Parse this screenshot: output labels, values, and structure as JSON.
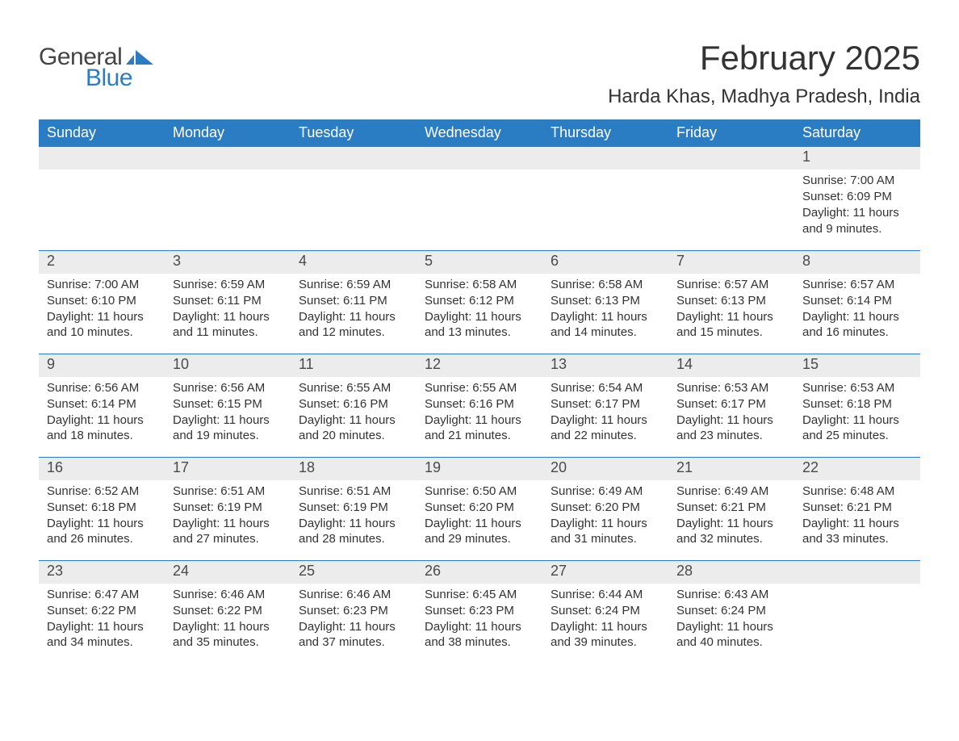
{
  "brand": {
    "general": "General",
    "blue": "Blue"
  },
  "title": {
    "month": "February 2025",
    "location": "Harda Khas, Madhya Pradesh, India"
  },
  "colors": {
    "header_bg": "#2a7dc2",
    "header_text": "#ffffff",
    "daynum_band_bg": "#ececec",
    "week_divider": "#2a7dc2",
    "body_text": "#333333",
    "logo_gray": "#444444",
    "logo_blue": "#2a7dc2",
    "page_bg": "#ffffff"
  },
  "layout": {
    "columns": 7,
    "rows": 5,
    "title_fontsize": 42,
    "location_fontsize": 24,
    "weekday_fontsize": 18,
    "daynum_fontsize": 18,
    "cell_fontsize": 15,
    "type": "calendar-table"
  },
  "weekdays": [
    "Sunday",
    "Monday",
    "Tuesday",
    "Wednesday",
    "Thursday",
    "Friday",
    "Saturday"
  ],
  "weeks": [
    [
      {
        "day": "",
        "sunrise": "",
        "sunset": "",
        "daylight": ""
      },
      {
        "day": "",
        "sunrise": "",
        "sunset": "",
        "daylight": ""
      },
      {
        "day": "",
        "sunrise": "",
        "sunset": "",
        "daylight": ""
      },
      {
        "day": "",
        "sunrise": "",
        "sunset": "",
        "daylight": ""
      },
      {
        "day": "",
        "sunrise": "",
        "sunset": "",
        "daylight": ""
      },
      {
        "day": "",
        "sunrise": "",
        "sunset": "",
        "daylight": ""
      },
      {
        "day": "1",
        "sunrise": "Sunrise: 7:00 AM",
        "sunset": "Sunset: 6:09 PM",
        "daylight": "Daylight: 11 hours and 9 minutes."
      }
    ],
    [
      {
        "day": "2",
        "sunrise": "Sunrise: 7:00 AM",
        "sunset": "Sunset: 6:10 PM",
        "daylight": "Daylight: 11 hours and 10 minutes."
      },
      {
        "day": "3",
        "sunrise": "Sunrise: 6:59 AM",
        "sunset": "Sunset: 6:11 PM",
        "daylight": "Daylight: 11 hours and 11 minutes."
      },
      {
        "day": "4",
        "sunrise": "Sunrise: 6:59 AM",
        "sunset": "Sunset: 6:11 PM",
        "daylight": "Daylight: 11 hours and 12 minutes."
      },
      {
        "day": "5",
        "sunrise": "Sunrise: 6:58 AM",
        "sunset": "Sunset: 6:12 PM",
        "daylight": "Daylight: 11 hours and 13 minutes."
      },
      {
        "day": "6",
        "sunrise": "Sunrise: 6:58 AM",
        "sunset": "Sunset: 6:13 PM",
        "daylight": "Daylight: 11 hours and 14 minutes."
      },
      {
        "day": "7",
        "sunrise": "Sunrise: 6:57 AM",
        "sunset": "Sunset: 6:13 PM",
        "daylight": "Daylight: 11 hours and 15 minutes."
      },
      {
        "day": "8",
        "sunrise": "Sunrise: 6:57 AM",
        "sunset": "Sunset: 6:14 PM",
        "daylight": "Daylight: 11 hours and 16 minutes."
      }
    ],
    [
      {
        "day": "9",
        "sunrise": "Sunrise: 6:56 AM",
        "sunset": "Sunset: 6:14 PM",
        "daylight": "Daylight: 11 hours and 18 minutes."
      },
      {
        "day": "10",
        "sunrise": "Sunrise: 6:56 AM",
        "sunset": "Sunset: 6:15 PM",
        "daylight": "Daylight: 11 hours and 19 minutes."
      },
      {
        "day": "11",
        "sunrise": "Sunrise: 6:55 AM",
        "sunset": "Sunset: 6:16 PM",
        "daylight": "Daylight: 11 hours and 20 minutes."
      },
      {
        "day": "12",
        "sunrise": "Sunrise: 6:55 AM",
        "sunset": "Sunset: 6:16 PM",
        "daylight": "Daylight: 11 hours and 21 minutes."
      },
      {
        "day": "13",
        "sunrise": "Sunrise: 6:54 AM",
        "sunset": "Sunset: 6:17 PM",
        "daylight": "Daylight: 11 hours and 22 minutes."
      },
      {
        "day": "14",
        "sunrise": "Sunrise: 6:53 AM",
        "sunset": "Sunset: 6:17 PM",
        "daylight": "Daylight: 11 hours and 23 minutes."
      },
      {
        "day": "15",
        "sunrise": "Sunrise: 6:53 AM",
        "sunset": "Sunset: 6:18 PM",
        "daylight": "Daylight: 11 hours and 25 minutes."
      }
    ],
    [
      {
        "day": "16",
        "sunrise": "Sunrise: 6:52 AM",
        "sunset": "Sunset: 6:18 PM",
        "daylight": "Daylight: 11 hours and 26 minutes."
      },
      {
        "day": "17",
        "sunrise": "Sunrise: 6:51 AM",
        "sunset": "Sunset: 6:19 PM",
        "daylight": "Daylight: 11 hours and 27 minutes."
      },
      {
        "day": "18",
        "sunrise": "Sunrise: 6:51 AM",
        "sunset": "Sunset: 6:19 PM",
        "daylight": "Daylight: 11 hours and 28 minutes."
      },
      {
        "day": "19",
        "sunrise": "Sunrise: 6:50 AM",
        "sunset": "Sunset: 6:20 PM",
        "daylight": "Daylight: 11 hours and 29 minutes."
      },
      {
        "day": "20",
        "sunrise": "Sunrise: 6:49 AM",
        "sunset": "Sunset: 6:20 PM",
        "daylight": "Daylight: 11 hours and 31 minutes."
      },
      {
        "day": "21",
        "sunrise": "Sunrise: 6:49 AM",
        "sunset": "Sunset: 6:21 PM",
        "daylight": "Daylight: 11 hours and 32 minutes."
      },
      {
        "day": "22",
        "sunrise": "Sunrise: 6:48 AM",
        "sunset": "Sunset: 6:21 PM",
        "daylight": "Daylight: 11 hours and 33 minutes."
      }
    ],
    [
      {
        "day": "23",
        "sunrise": "Sunrise: 6:47 AM",
        "sunset": "Sunset: 6:22 PM",
        "daylight": "Daylight: 11 hours and 34 minutes."
      },
      {
        "day": "24",
        "sunrise": "Sunrise: 6:46 AM",
        "sunset": "Sunset: 6:22 PM",
        "daylight": "Daylight: 11 hours and 35 minutes."
      },
      {
        "day": "25",
        "sunrise": "Sunrise: 6:46 AM",
        "sunset": "Sunset: 6:23 PM",
        "daylight": "Daylight: 11 hours and 37 minutes."
      },
      {
        "day": "26",
        "sunrise": "Sunrise: 6:45 AM",
        "sunset": "Sunset: 6:23 PM",
        "daylight": "Daylight: 11 hours and 38 minutes."
      },
      {
        "day": "27",
        "sunrise": "Sunrise: 6:44 AM",
        "sunset": "Sunset: 6:24 PM",
        "daylight": "Daylight: 11 hours and 39 minutes."
      },
      {
        "day": "28",
        "sunrise": "Sunrise: 6:43 AM",
        "sunset": "Sunset: 6:24 PM",
        "daylight": "Daylight: 11 hours and 40 minutes."
      },
      {
        "day": "",
        "sunrise": "",
        "sunset": "",
        "daylight": ""
      }
    ]
  ]
}
